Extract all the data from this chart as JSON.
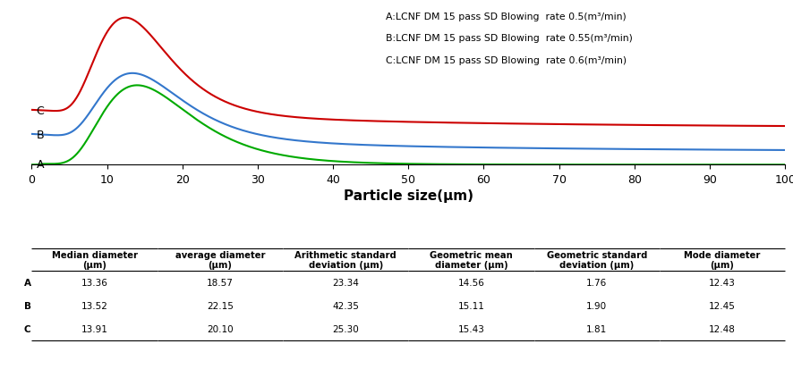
{
  "xlabel": "Particle size(μm)",
  "xlim": [
    0,
    100
  ],
  "xticks": [
    0,
    10,
    20,
    30,
    40,
    50,
    60,
    70,
    80,
    90,
    100
  ],
  "legend_labels": [
    "A:LCNF DM 15 pass SD Blowing  rate 0.5(m³/min)",
    "B:LCNF DM 15 pass SD Blowing  rate 0.55(m³/min)",
    "C:LCNF DM 15 pass SD Blowing  rate 0.6(m³/min)"
  ],
  "curve_colors": [
    "#00aa00",
    "#3377cc",
    "#cc0000"
  ],
  "curve_labels": [
    "A",
    "B",
    "C"
  ],
  "table_headers": [
    "Median diameter\n(μm)",
    "average diameter\n(μm)",
    "Arithmetic standard\ndeviation (μm)",
    "Geometric mean\ndiameter (μm)",
    "Geometric standard\ndeviation (μm)",
    "Mode diameter\n(μm)"
  ],
  "table_rows": [
    [
      "A",
      "13.36",
      "18.57",
      "23.34",
      "14.56",
      "1.76",
      "12.43"
    ],
    [
      "B",
      "13.52",
      "22.15",
      "42.35",
      "15.11",
      "1.90",
      "12.45"
    ],
    [
      "C",
      "13.91",
      "20.10",
      "25.30",
      "15.43",
      "1.81",
      "12.48"
    ]
  ],
  "background_color": "#ffffff"
}
